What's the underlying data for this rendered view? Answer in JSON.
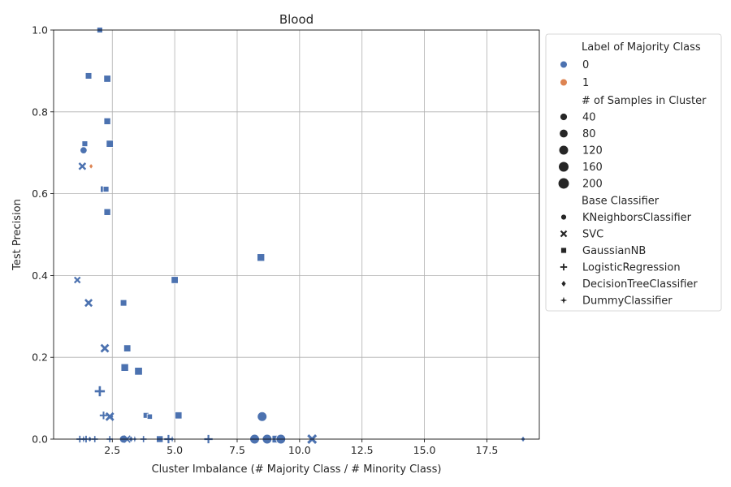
{
  "chart_data": {
    "type": "scatter",
    "title": "Blood",
    "xlabel": "Cluster Imbalance (# Majority Class / # Minority Class)",
    "ylabel": "Test Precision",
    "xlim": [
      0.15,
      19.6
    ],
    "ylim": [
      0.0,
      1.0
    ],
    "xticks": [
      "2.5",
      "5.0",
      "7.5",
      "10.0",
      "12.5",
      "15.0",
      "17.5"
    ],
    "yticks": [
      "0.0",
      "0.2",
      "0.4",
      "0.6",
      "0.8",
      "1.0"
    ],
    "grid": true,
    "legend_position": "outside-right",
    "colors": {
      "0": "#4c72b0",
      "1": "#dd8452"
    },
    "legend": {
      "hue_title": "Label of Majority Class",
      "hue_entries": [
        "0",
        "1"
      ],
      "size_title": "# of Samples in Cluster",
      "size_entries": [
        "40",
        "80",
        "120",
        "160",
        "200"
      ],
      "style_title": "Base Classifier",
      "style_entries": [
        {
          "label": "KNeighborsClassifier",
          "marker": "circle"
        },
        {
          "label": "SVC",
          "marker": "x"
        },
        {
          "label": "GaussianNB",
          "marker": "square"
        },
        {
          "label": "LogisticRegression",
          "marker": "plus"
        },
        {
          "label": "DecisionTreeClassifier",
          "marker": "diamond"
        },
        {
          "label": "DummyClassifier",
          "marker": "star"
        }
      ]
    },
    "points": [
      {
        "x": 2.0,
        "y": 1.0,
        "marker": "square",
        "label": 0,
        "n": 40
      },
      {
        "x": 1.55,
        "y": 0.888,
        "marker": "square",
        "label": 0,
        "n": 60
      },
      {
        "x": 2.3,
        "y": 0.881,
        "marker": "square",
        "label": 0,
        "n": 80
      },
      {
        "x": 2.3,
        "y": 0.777,
        "marker": "square",
        "label": 0,
        "n": 70
      },
      {
        "x": 1.4,
        "y": 0.722,
        "marker": "square",
        "label": 0,
        "n": 40
      },
      {
        "x": 2.4,
        "y": 0.722,
        "marker": "square",
        "label": 0,
        "n": 80
      },
      {
        "x": 1.35,
        "y": 0.706,
        "marker": "circle",
        "label": 0,
        "n": 80
      },
      {
        "x": 1.3,
        "y": 0.667,
        "marker": "x",
        "label": 0,
        "n": 60
      },
      {
        "x": 1.65,
        "y": 0.667,
        "marker": "diamond",
        "label": 1,
        "n": 20
      },
      {
        "x": 2.15,
        "y": 0.611,
        "marker": "square",
        "label": 0,
        "n": 60
      },
      {
        "x": 2.25,
        "y": 0.611,
        "marker": "square",
        "label": 0,
        "n": 40
      },
      {
        "x": 2.3,
        "y": 0.555,
        "marker": "square",
        "label": 0,
        "n": 70
      },
      {
        "x": 8.45,
        "y": 0.444,
        "marker": "square",
        "label": 0,
        "n": 100
      },
      {
        "x": 1.1,
        "y": 0.389,
        "marker": "x",
        "label": 0,
        "n": 40
      },
      {
        "x": 5.0,
        "y": 0.389,
        "marker": "square",
        "label": 0,
        "n": 80
      },
      {
        "x": 1.55,
        "y": 0.333,
        "marker": "x",
        "label": 0,
        "n": 70
      },
      {
        "x": 2.95,
        "y": 0.333,
        "marker": "square",
        "label": 0,
        "n": 60
      },
      {
        "x": 2.2,
        "y": 0.222,
        "marker": "x",
        "label": 0,
        "n": 90
      },
      {
        "x": 3.1,
        "y": 0.222,
        "marker": "square",
        "label": 0,
        "n": 80
      },
      {
        "x": 3.0,
        "y": 0.175,
        "marker": "square",
        "label": 0,
        "n": 100
      },
      {
        "x": 3.55,
        "y": 0.166,
        "marker": "square",
        "label": 0,
        "n": 110
      },
      {
        "x": 2.0,
        "y": 0.117,
        "marker": "plus",
        "label": 0,
        "n": 140
      },
      {
        "x": 2.15,
        "y": 0.058,
        "marker": "plus",
        "label": 0,
        "n": 60
      },
      {
        "x": 2.45,
        "y": 0.055,
        "marker": "diamond",
        "label": 0,
        "n": 50
      },
      {
        "x": 2.4,
        "y": 0.055,
        "marker": "x",
        "label": 0,
        "n": 90
      },
      {
        "x": 3.85,
        "y": 0.058,
        "marker": "square",
        "label": 0,
        "n": 40
      },
      {
        "x": 4.0,
        "y": 0.055,
        "marker": "square",
        "label": 0,
        "n": 30
      },
      {
        "x": 5.15,
        "y": 0.058,
        "marker": "square",
        "label": 0,
        "n": 80
      },
      {
        "x": 8.5,
        "y": 0.055,
        "marker": "circle",
        "label": 0,
        "n": 200
      },
      {
        "x": 1.2,
        "y": 0.0,
        "marker": "plus",
        "label": 0,
        "n": 40
      },
      {
        "x": 1.35,
        "y": 0.0,
        "marker": "star",
        "label": 0,
        "n": 40
      },
      {
        "x": 1.45,
        "y": 0.0,
        "marker": "plus",
        "label": 0,
        "n": 40
      },
      {
        "x": 1.6,
        "y": 0.0,
        "marker": "diamond",
        "label": 0,
        "n": 30
      },
      {
        "x": 1.8,
        "y": 0.0,
        "marker": "plus",
        "label": 0,
        "n": 30
      },
      {
        "x": 2.4,
        "y": 0.0,
        "marker": "plus",
        "label": 0,
        "n": 30
      },
      {
        "x": 2.95,
        "y": 0.0,
        "marker": "circle",
        "label": 0,
        "n": 120
      },
      {
        "x": 3.1,
        "y": 0.0,
        "marker": "x",
        "label": 0,
        "n": 60
      },
      {
        "x": 3.25,
        "y": 0.0,
        "marker": "diamond",
        "label": 0,
        "n": 40
      },
      {
        "x": 3.4,
        "y": 0.0,
        "marker": "star",
        "label": 0,
        "n": 30
      },
      {
        "x": 3.75,
        "y": 0.0,
        "marker": "plus",
        "label": 0,
        "n": 30
      },
      {
        "x": 4.4,
        "y": 0.0,
        "marker": "square",
        "label": 0,
        "n": 70
      },
      {
        "x": 4.75,
        "y": 0.0,
        "marker": "plus",
        "label": 0,
        "n": 80
      },
      {
        "x": 4.9,
        "y": 0.0,
        "marker": "star",
        "label": 0,
        "n": 30
      },
      {
        "x": 6.35,
        "y": 0.0,
        "marker": "plus",
        "label": 0,
        "n": 80
      },
      {
        "x": 8.2,
        "y": 0.0,
        "marker": "circle",
        "label": 0,
        "n": 200
      },
      {
        "x": 8.7,
        "y": 0.0,
        "marker": "circle",
        "label": 0,
        "n": 200
      },
      {
        "x": 9.05,
        "y": 0.0,
        "marker": "square",
        "label": 0,
        "n": 100
      },
      {
        "x": 9.25,
        "y": 0.0,
        "marker": "circle",
        "label": 0,
        "n": 200
      },
      {
        "x": 10.5,
        "y": 0.0,
        "marker": "x",
        "label": 0,
        "n": 120
      },
      {
        "x": 18.95,
        "y": 0.0,
        "marker": "diamond",
        "label": 0,
        "n": 30
      }
    ]
  }
}
